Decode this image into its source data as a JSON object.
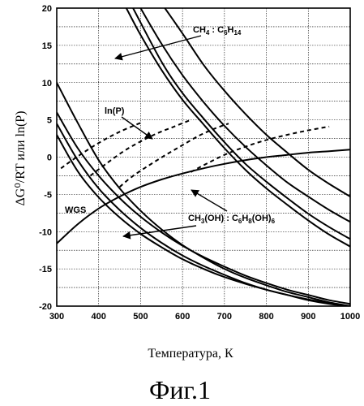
{
  "chart_data": {
    "type": "line",
    "title": "",
    "xlabel": "Температура, К",
    "ylabel": "ΔG⁰/RT или ln(P)",
    "xlim": [
      300,
      1000
    ],
    "ylim": [
      -20,
      20
    ],
    "xticks": [
      "300",
      "400",
      "500",
      "600",
      "700",
      "800",
      "900",
      "1000"
    ],
    "yticks": [
      "20",
      "15",
      "10",
      "5",
      "0",
      "-5",
      "-10",
      "-15",
      "-20"
    ],
    "grid": true,
    "annotations": [
      {
        "text": "CH",
        "sub1": "4",
        "mid": " : C",
        "sub2": "6",
        "tail": "H",
        "sub3": "14"
      },
      {
        "text": "ln(P)"
      },
      {
        "text": "WGS"
      },
      {
        "text": "CH",
        "sub1": "3",
        "mid": "(OH) : C",
        "sub2": "6",
        "tail": "H",
        "sub3": "8",
        "end": "(OH)",
        "sub4": "6"
      }
    ],
    "series": [
      {
        "group": "CH4:C6H14",
        "style": "solid",
        "points": [
          [
            482,
            20
          ],
          [
            550,
            12.8
          ],
          [
            600,
            8.6
          ],
          [
            650,
            5.2
          ],
          [
            700,
            2.0
          ],
          [
            750,
            -0.9
          ],
          [
            800,
            -3.3
          ],
          [
            850,
            -5.5
          ],
          [
            900,
            -7.6
          ],
          [
            950,
            -9.4
          ],
          [
            1000,
            -11
          ]
        ]
      },
      {
        "group": "CH4:C6H14",
        "style": "solid",
        "points": [
          [
            500,
            20
          ],
          [
            550,
            15.2
          ],
          [
            600,
            11
          ],
          [
            650,
            7.4
          ],
          [
            700,
            4.2
          ],
          [
            750,
            1.4
          ],
          [
            800,
            -1.1
          ],
          [
            850,
            -3.4
          ],
          [
            900,
            -5.3
          ],
          [
            950,
            -7.1
          ],
          [
            1000,
            -8.7
          ]
        ]
      },
      {
        "group": "CH4:C6H14",
        "style": "solid",
        "points": [
          [
            466,
            20
          ],
          [
            500,
            16.4
          ],
          [
            550,
            11.7
          ],
          [
            600,
            7.7
          ],
          [
            650,
            4.4
          ],
          [
            700,
            1.2
          ],
          [
            750,
            -1.7
          ],
          [
            800,
            -4.2
          ],
          [
            850,
            -6.4
          ],
          [
            900,
            -8.5
          ],
          [
            950,
            -10.4
          ],
          [
            1000,
            -12
          ]
        ]
      },
      {
        "group": "CH4:C6H14",
        "style": "solid",
        "points": [
          [
            558,
            20
          ],
          [
            600,
            16.6
          ],
          [
            650,
            12.4
          ],
          [
            700,
            8.9
          ],
          [
            750,
            5.8
          ],
          [
            800,
            3.0
          ],
          [
            850,
            0.6
          ],
          [
            900,
            -1.7
          ],
          [
            950,
            -3.6
          ],
          [
            1000,
            -5.3
          ]
        ]
      },
      {
        "group": "CH3OH:C6H8(OH)6",
        "style": "solid",
        "points": [
          [
            300,
            10
          ],
          [
            350,
            4.6
          ],
          [
            400,
            -0.4
          ],
          [
            450,
            -4.2
          ],
          [
            500,
            -7.2
          ],
          [
            550,
            -9.7
          ],
          [
            600,
            -11.8
          ],
          [
            650,
            -13.5
          ],
          [
            700,
            -15
          ],
          [
            750,
            -16.2
          ],
          [
            800,
            -17.2
          ],
          [
            850,
            -18.1
          ],
          [
            900,
            -18.8
          ],
          [
            950,
            -19.5
          ],
          [
            1000,
            -20
          ]
        ]
      },
      {
        "group": "CH3OH:C6H8(OH)6",
        "style": "solid",
        "points": [
          [
            300,
            6
          ],
          [
            350,
            1.2
          ],
          [
            400,
            -2.5
          ],
          [
            450,
            -5.5
          ],
          [
            500,
            -8
          ],
          [
            550,
            -10.1
          ],
          [
            600,
            -11.9
          ],
          [
            650,
            -13.4
          ],
          [
            700,
            -14.7
          ],
          [
            750,
            -15.9
          ],
          [
            800,
            -16.9
          ],
          [
            850,
            -17.8
          ],
          [
            900,
            -18.5
          ],
          [
            950,
            -19.2
          ],
          [
            1000,
            -19.7
          ]
        ]
      },
      {
        "group": "CH3OH:C6H8(OH)6",
        "style": "solid",
        "points": [
          [
            300,
            4.5
          ],
          [
            350,
            -0.4
          ],
          [
            400,
            -4.2
          ],
          [
            450,
            -7.1
          ],
          [
            500,
            -9.5
          ],
          [
            550,
            -11.5
          ],
          [
            600,
            -13.2
          ],
          [
            650,
            -14.6
          ],
          [
            700,
            -15.8
          ],
          [
            750,
            -16.9
          ],
          [
            800,
            -17.8
          ],
          [
            850,
            -18.5
          ],
          [
            900,
            -19.2
          ],
          [
            950,
            -19.7
          ],
          [
            1000,
            -20
          ]
        ]
      },
      {
        "group": "CH3OH:C6H8(OH)6",
        "style": "solid",
        "points": [
          [
            300,
            3
          ],
          [
            350,
            -1.9
          ],
          [
            400,
            -5.4
          ],
          [
            450,
            -8.1
          ],
          [
            500,
            -10.3
          ],
          [
            550,
            -12.1
          ],
          [
            600,
            -13.7
          ],
          [
            650,
            -15
          ],
          [
            700,
            -16.1
          ],
          [
            750,
            -17
          ],
          [
            800,
            -17.8
          ],
          [
            850,
            -18.5
          ],
          [
            900,
            -19.1
          ],
          [
            950,
            -19.6
          ],
          [
            1000,
            -20
          ]
        ]
      },
      {
        "group": "WGS",
        "style": "solid",
        "points": [
          [
            300,
            -11.6
          ],
          [
            350,
            -9
          ],
          [
            400,
            -6.9
          ],
          [
            450,
            -5.3
          ],
          [
            500,
            -4
          ],
          [
            550,
            -3
          ],
          [
            600,
            -2.2
          ],
          [
            650,
            -1.5
          ],
          [
            700,
            -0.9
          ],
          [
            750,
            -0.4
          ],
          [
            800,
            0
          ],
          [
            850,
            0.3
          ],
          [
            900,
            0.6
          ],
          [
            950,
            0.8
          ],
          [
            1000,
            1
          ]
        ]
      },
      {
        "group": "ln(P)",
        "style": "dashed",
        "points": [
          [
            310,
            -1.5
          ],
          [
            350,
            0.1
          ],
          [
            400,
            1.9
          ],
          [
            450,
            3.4
          ],
          [
            500,
            4.6
          ]
        ]
      },
      {
        "group": "ln(P)",
        "style": "dashed",
        "points": [
          [
            450,
            -4
          ],
          [
            480,
            -2.6
          ],
          [
            520,
            -1.1
          ],
          [
            560,
            0.3
          ],
          [
            600,
            1.6
          ],
          [
            640,
            2.9
          ],
          [
            680,
            3.9
          ],
          [
            710,
            4.5
          ]
        ]
      },
      {
        "group": "ln(P)",
        "style": "dashed",
        "points": [
          [
            620,
            -2
          ],
          [
            650,
            -1.1
          ],
          [
            700,
            0.3
          ],
          [
            750,
            1.4
          ],
          [
            800,
            2.3
          ],
          [
            850,
            3.0
          ],
          [
            900,
            3.6
          ],
          [
            950,
            4.1
          ]
        ]
      },
      {
        "group": "ln(P)",
        "style": "dashed",
        "points": [
          [
            380,
            -2.5
          ],
          [
            420,
            -0.8
          ],
          [
            460,
            0.8
          ],
          [
            500,
            2.1
          ],
          [
            540,
            3.2
          ],
          [
            580,
            4.1
          ],
          [
            620,
            5.0
          ]
        ]
      }
    ]
  },
  "caption": "Фиг.1"
}
